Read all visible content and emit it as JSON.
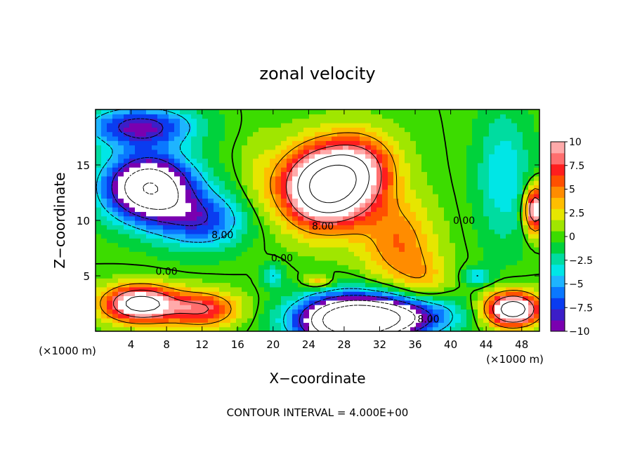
{
  "chart_data": {
    "type": "heatmap",
    "title": "zonal velocity",
    "xlabel": "X−coordinate",
    "ylabel": "Z−coordinate",
    "x_unit_left": "(×1000 m)",
    "x_unit_right": "(×1000 m)",
    "footer": "CONTOUR INTERVAL = 4.000E+00",
    "xlim": [
      0,
      50
    ],
    "ylim": [
      0,
      20
    ],
    "x_ticks": [
      4,
      8,
      12,
      16,
      20,
      24,
      28,
      32,
      36,
      40,
      44,
      48
    ],
    "y_ticks": [
      5,
      10,
      15
    ],
    "colorbar": {
      "min": -10,
      "max": 10,
      "ticks": [
        10,
        7.5,
        5,
        2.5,
        0,
        -2.5,
        -5,
        -7.5,
        -10
      ],
      "tick_labels": [
        "10",
        "7.5",
        "5",
        "2.5",
        "0",
        "−2.5",
        "−5",
        "−7.5",
        "−10"
      ],
      "colors": [
        "#7a00b0",
        "#3c1ec8",
        "#0a3cf0",
        "#0a78ff",
        "#1eb4ff",
        "#00e6e6",
        "#00dca0",
        "#00d23c",
        "#3cdc00",
        "#a0e600",
        "#e6e600",
        "#ffbe00",
        "#ff8c00",
        "#ff5000",
        "#ff1e1e",
        "#ff6e6e",
        "#ffaaaa"
      ]
    },
    "contour_labels": [
      {
        "text": "0.00",
        "x": 8,
        "z": 5.4
      },
      {
        "text": "8.00",
        "x": 14.3,
        "z": 8.7
      },
      {
        "text": "0.00",
        "x": 21,
        "z": 6.6
      },
      {
        "text": "8.00",
        "x": 25.6,
        "z": 9.5
      },
      {
        "text": "0.00",
        "x": 41.5,
        "z": 10
      },
      {
        "text": "8.00",
        "x": 37.5,
        "z": 1.1
      }
    ],
    "value_field": {
      "description_of_features": "velocity field in m/s",
      "features": [
        {
          "x": 6,
          "z": 13,
          "sx": 5,
          "sz": 3,
          "a": -16
        },
        {
          "x": 5,
          "z": 18.5,
          "sx": 6,
          "sz": 1.8,
          "a": -9
        },
        {
          "x": 12,
          "z": 10,
          "sx": 5,
          "sz": 2.5,
          "a": -7
        },
        {
          "x": 26,
          "z": 13,
          "sx": 5,
          "sz": 3.5,
          "a": 18
        },
        {
          "x": 30,
          "z": 15,
          "sx": 4,
          "sz": 3,
          "a": 6
        },
        {
          "x": 34,
          "z": 8,
          "sx": 4,
          "sz": 4,
          "a": 5
        },
        {
          "x": 37,
          "z": 4,
          "sx": 3,
          "sz": 3,
          "a": 3
        },
        {
          "x": 5,
          "z": 2.5,
          "sx": 4,
          "sz": 1.6,
          "a": 14
        },
        {
          "x": 12,
          "z": 2,
          "sx": 4,
          "sz": 1.6,
          "a": 8
        },
        {
          "x": 29,
          "z": 1,
          "sx": 6,
          "sz": 2.2,
          "a": -22
        },
        {
          "x": 36,
          "z": 1.5,
          "sx": 5,
          "sz": 1.8,
          "a": -8
        },
        {
          "x": 47,
          "z": 2,
          "sx": 3,
          "sz": 1.5,
          "a": 15
        },
        {
          "x": 46,
          "z": 14,
          "sx": 3,
          "sz": 6,
          "a": -4
        },
        {
          "x": 49.5,
          "z": 11,
          "sx": 1.2,
          "sz": 2,
          "a": 12
        },
        {
          "x": 20,
          "z": 5,
          "sx": 1.2,
          "sz": 1,
          "a": -4
        },
        {
          "x": 43,
          "z": 5,
          "sx": 1.5,
          "sz": 0.8,
          "a": -4
        },
        {
          "x": 18,
          "z": 14,
          "sx": 2,
          "sz": 5,
          "a": 1
        },
        {
          "x": 25,
          "z": 4.5,
          "sx": 1.5,
          "sz": 0.6,
          "a": 4
        }
      ]
    }
  }
}
